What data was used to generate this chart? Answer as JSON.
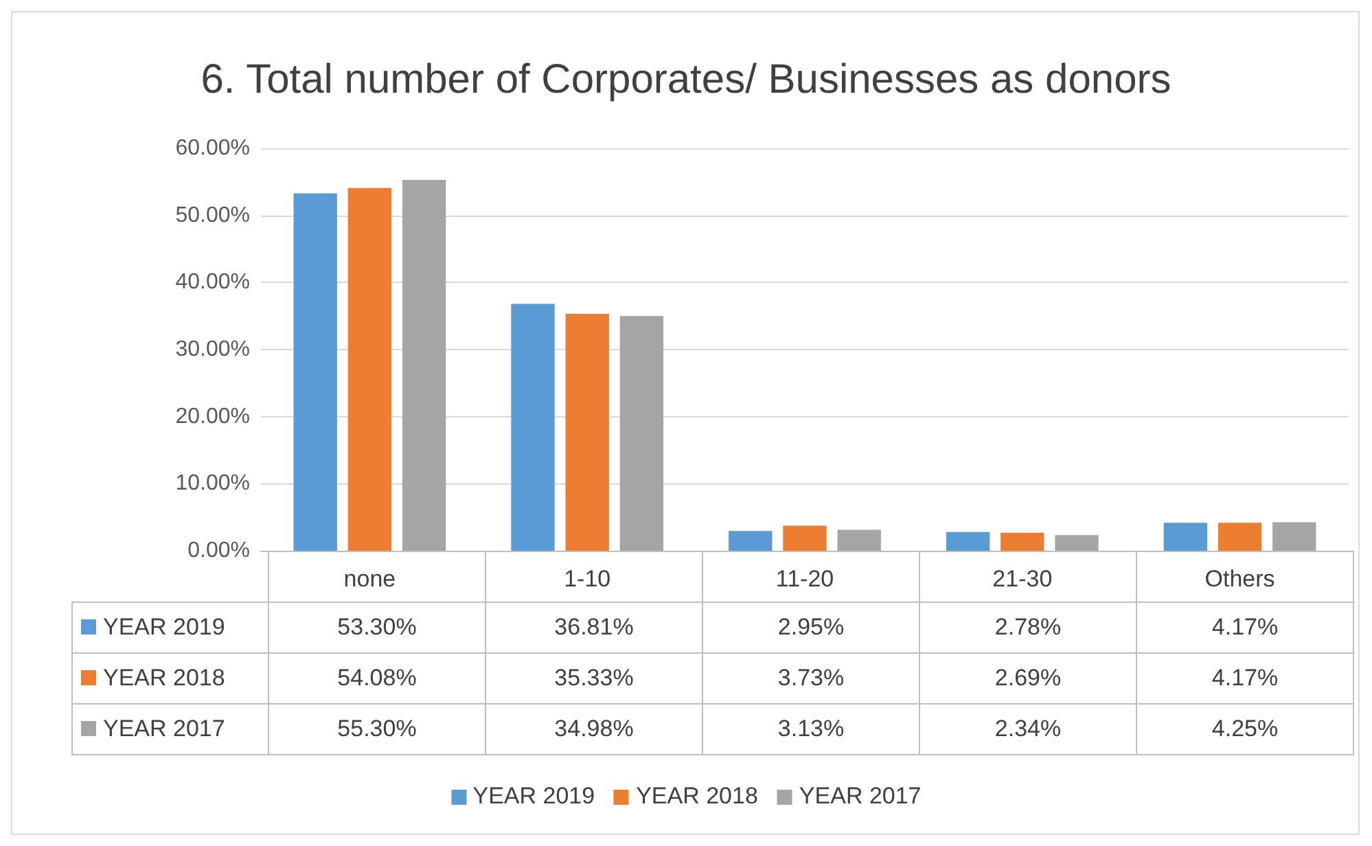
{
  "chart_data": {
    "type": "bar",
    "title": "6. Total number of Corporates/ Businesses as donors",
    "categories": [
      "none",
      "1-10",
      "11-20",
      "21-30",
      "Others"
    ],
    "series": [
      {
        "name": "YEAR 2019",
        "color": "#5b9bd5",
        "values": [
          53.3,
          36.81,
          2.95,
          2.78,
          4.17
        ],
        "value_labels": [
          "53.30%",
          "36.81%",
          "2.95%",
          "2.78%",
          "4.17%"
        ]
      },
      {
        "name": "YEAR 2018",
        "color": "#ed7d31",
        "values": [
          54.08,
          35.33,
          3.73,
          2.69,
          4.17
        ],
        "value_labels": [
          "54.08%",
          "35.33%",
          "3.73%",
          "2.69%",
          "4.17%"
        ]
      },
      {
        "name": "YEAR 2017",
        "color": "#a5a5a5",
        "values": [
          55.3,
          34.98,
          3.13,
          2.34,
          4.25
        ],
        "value_labels": [
          "55.30%",
          "34.98%",
          "3.13%",
          "2.34%",
          "4.25%"
        ]
      }
    ],
    "ylim": [
      0,
      60
    ],
    "yticks": [
      {
        "value": 0,
        "label": "0.00%"
      },
      {
        "value": 10,
        "label": "10.00%"
      },
      {
        "value": 20,
        "label": "20.00%"
      },
      {
        "value": 30,
        "label": "30.00%"
      },
      {
        "value": 40,
        "label": "40.00%"
      },
      {
        "value": 50,
        "label": "50.00%"
      },
      {
        "value": 60,
        "label": "60.00%"
      }
    ],
    "grid": "y",
    "legend": "bottom"
  }
}
